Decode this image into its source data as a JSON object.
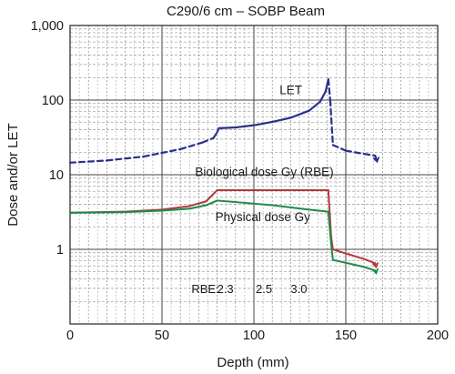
{
  "chart_data": {
    "type": "line",
    "title": "C290/6 cm – SOBP Beam",
    "xlabel": "Depth (mm)",
    "ylabel": "Dose and/or LET",
    "xlim": [
      0,
      200
    ],
    "ylim": [
      0.1,
      1000
    ],
    "yscale": "log",
    "grid": true,
    "x_ticks": [
      0,
      50,
      100,
      150,
      200
    ],
    "x_tick_labels": [
      "0",
      "50",
      "100",
      "150",
      "200"
    ],
    "y_ticks": [
      1,
      10,
      100,
      1000
    ],
    "y_tick_labels": [
      "1",
      "10",
      "100",
      "1,000"
    ],
    "series": [
      {
        "name": "LET",
        "color": "#2b2f8a",
        "points": [
          {
            "x": 0,
            "y": 14.5,
            "style": "dashed"
          },
          {
            "x": 20,
            "y": 15.5,
            "style": "dashed"
          },
          {
            "x": 40,
            "y": 17.5,
            "style": "dashed"
          },
          {
            "x": 60,
            "y": 22,
            "style": "dashed"
          },
          {
            "x": 72,
            "y": 27,
            "style": "dashed"
          },
          {
            "x": 78,
            "y": 31,
            "style": "dashed"
          },
          {
            "x": 80,
            "y": 37,
            "style": "dashed"
          },
          {
            "x": 81,
            "y": 42,
            "style": "solid"
          },
          {
            "x": 90,
            "y": 43,
            "style": "solid"
          },
          {
            "x": 100,
            "y": 46,
            "style": "solid"
          },
          {
            "x": 110,
            "y": 51,
            "style": "solid"
          },
          {
            "x": 120,
            "y": 58,
            "style": "solid"
          },
          {
            "x": 130,
            "y": 72,
            "style": "solid"
          },
          {
            "x": 136,
            "y": 95,
            "style": "solid"
          },
          {
            "x": 139,
            "y": 130,
            "style": "solid"
          },
          {
            "x": 140.5,
            "y": 190,
            "style": "solid"
          },
          {
            "x": 141.5,
            "y": 100,
            "style": "dashed"
          },
          {
            "x": 143,
            "y": 25,
            "style": "dashed"
          },
          {
            "x": 150,
            "y": 21,
            "style": "dashed"
          },
          {
            "x": 160,
            "y": 19,
            "style": "dashed"
          },
          {
            "x": 166,
            "y": 18,
            "style": "dashed"
          },
          {
            "x": 167,
            "y": 15,
            "style": "dashed"
          }
        ]
      },
      {
        "name": "Biological dose Gy (RBE)",
        "color": "#b53a3a",
        "points": [
          {
            "x": 0,
            "y": 3.1
          },
          {
            "x": 30,
            "y": 3.2
          },
          {
            "x": 50,
            "y": 3.4
          },
          {
            "x": 65,
            "y": 3.8
          },
          {
            "x": 74,
            "y": 4.4
          },
          {
            "x": 80,
            "y": 6.2
          },
          {
            "x": 90,
            "y": 6.2
          },
          {
            "x": 110,
            "y": 6.2
          },
          {
            "x": 130,
            "y": 6.2
          },
          {
            "x": 140.5,
            "y": 6.2
          },
          {
            "x": 142,
            "y": 1.5
          },
          {
            "x": 143,
            "y": 1.0
          },
          {
            "x": 150,
            "y": 0.88
          },
          {
            "x": 160,
            "y": 0.74
          },
          {
            "x": 166,
            "y": 0.65
          },
          {
            "x": 166.5,
            "y": 0.58
          }
        ]
      },
      {
        "name": "Physical dose Gy",
        "color": "#1e8a4a",
        "points": [
          {
            "x": 0,
            "y": 3.1
          },
          {
            "x": 30,
            "y": 3.15
          },
          {
            "x": 50,
            "y": 3.3
          },
          {
            "x": 65,
            "y": 3.5
          },
          {
            "x": 74,
            "y": 3.9
          },
          {
            "x": 80,
            "y": 4.5
          },
          {
            "x": 90,
            "y": 4.3
          },
          {
            "x": 110,
            "y": 3.9
          },
          {
            "x": 130,
            "y": 3.4
          },
          {
            "x": 140.5,
            "y": 3.2
          },
          {
            "x": 142,
            "y": 1.2
          },
          {
            "x": 143,
            "y": 0.72
          },
          {
            "x": 150,
            "y": 0.66
          },
          {
            "x": 160,
            "y": 0.58
          },
          {
            "x": 166,
            "y": 0.52
          },
          {
            "x": 166.5,
            "y": 0.48
          }
        ]
      }
    ],
    "annotations": [
      {
        "text": "LET",
        "x": 114,
        "y": 120
      },
      {
        "text": "Biological dose Gy (RBE)",
        "x": 68,
        "y": 9.6
      },
      {
        "text": "Physical dose Gy",
        "x": 79,
        "y": 2.4
      },
      {
        "text": "RBE:",
        "x": 66,
        "y": 0.26
      },
      {
        "text": "2.3",
        "x": 80,
        "y": 0.26
      },
      {
        "text": "2.5",
        "x": 101,
        "y": 0.26
      },
      {
        "text": "3.0",
        "x": 120,
        "y": 0.26
      }
    ]
  }
}
